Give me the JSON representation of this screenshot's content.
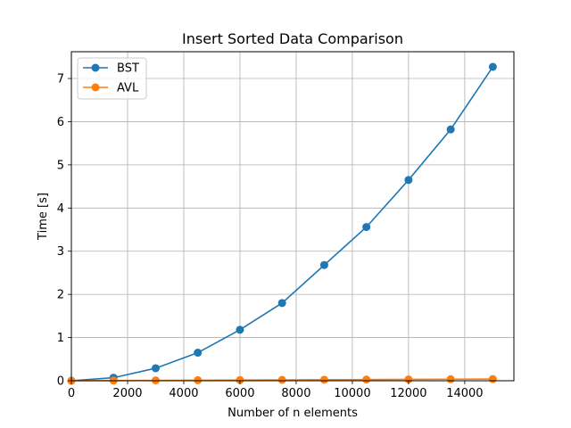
{
  "chart_data": {
    "type": "line",
    "title": "Insert Sorted Data Comparison",
    "xlabel": "Number of n elements",
    "ylabel": "Time [s]",
    "xlim": [
      0,
      15750
    ],
    "ylim": [
      0,
      7.62
    ],
    "xticks": [
      0,
      2000,
      4000,
      6000,
      8000,
      10000,
      12000,
      14000
    ],
    "yticks": [
      0,
      1,
      2,
      3,
      4,
      5,
      6,
      7
    ],
    "grid": true,
    "legend_position": "top-left",
    "x": [
      0,
      1500,
      3000,
      4500,
      6000,
      7500,
      9000,
      10500,
      12000,
      13500,
      15000
    ],
    "series": [
      {
        "name": "BST",
        "color": "#1f77b4",
        "values": [
          0.0,
          0.07,
          0.29,
          0.65,
          1.18,
          1.8,
          2.68,
          3.56,
          4.65,
          5.82,
          7.27
        ]
      },
      {
        "name": "AVL",
        "color": "#ff7f0e",
        "values": [
          0.0,
          0.004,
          0.008,
          0.012,
          0.016,
          0.02,
          0.024,
          0.028,
          0.032,
          0.036,
          0.04
        ]
      }
    ]
  }
}
